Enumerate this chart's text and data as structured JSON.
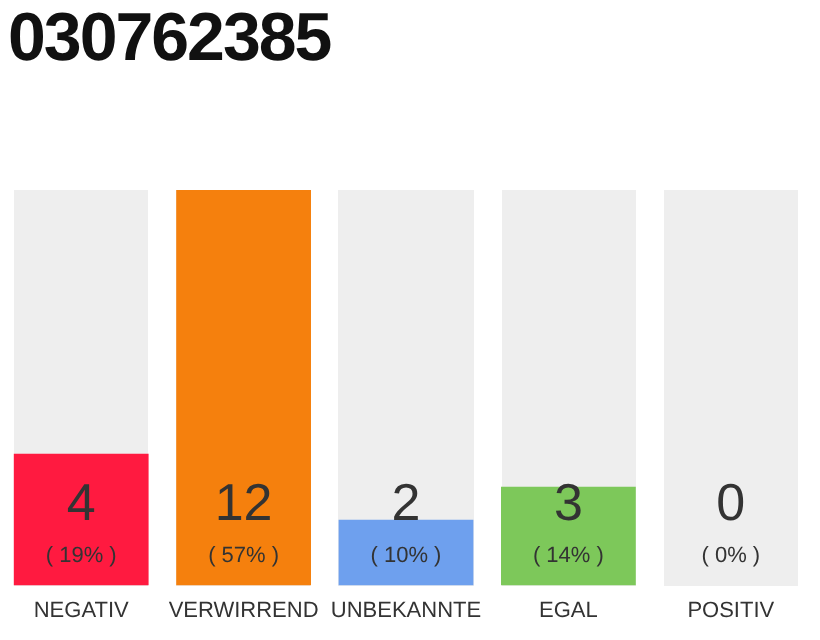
{
  "chart_data": {
    "type": "bar",
    "title": "030762385",
    "categories": [
      "NEGATIV",
      "VERWIRREND",
      "UNBEKANNTE",
      "EGAL",
      "POSITIV"
    ],
    "values": [
      4,
      12,
      2,
      3,
      0
    ],
    "colors": [
      "#ff1a40",
      "#f5800d",
      "#6ea0ee",
      "#7dc85a",
      null
    ],
    "value_labels": [
      "4\n( 19% )",
      "12\n( 57% )",
      "2\n( 10% )",
      "3\n( 14% )",
      "0\n( 0% )"
    ],
    "grid": false,
    "legend": false
  }
}
